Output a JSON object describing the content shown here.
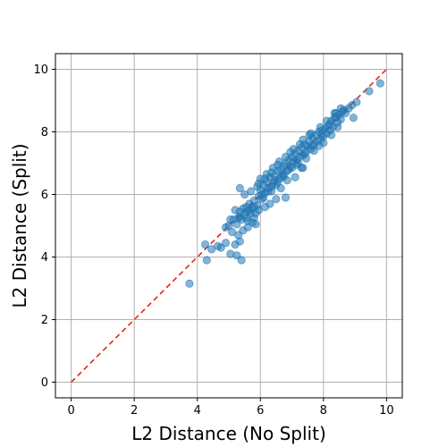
{
  "chart_data": {
    "type": "scatter",
    "title": "",
    "xlabel": "L2 Distance (No Split)",
    "ylabel": "L2 Distance (Split)",
    "xlim": [
      -0.5,
      10.5
    ],
    "ylim": [
      -0.5,
      10.5
    ],
    "xticks": [
      0,
      2,
      4,
      6,
      8,
      10
    ],
    "yticks": [
      0,
      2,
      4,
      6,
      8,
      10
    ],
    "grid": true,
    "legend": "none",
    "colors": {
      "points": "#1f77b4",
      "reference_line": "#e8221a",
      "grid": "#b0b0b0"
    },
    "series": [
      {
        "points": [
          [
            3.75,
            3.15
          ],
          [
            4.3,
            3.9
          ],
          [
            4.25,
            4.4
          ],
          [
            4.45,
            4.25
          ],
          [
            4.65,
            4.35
          ],
          [
            4.75,
            4.3
          ],
          [
            5.05,
            4.1
          ],
          [
            5.25,
            4.05
          ],
          [
            5.4,
            3.9
          ],
          [
            4.9,
            4.45
          ],
          [
            5.2,
            4.4
          ],
          [
            5.35,
            4.5
          ],
          [
            5.0,
            5.0
          ],
          [
            5.1,
            4.8
          ],
          [
            5.15,
            5.2
          ],
          [
            5.25,
            5.05
          ],
          [
            5.3,
            5.25
          ],
          [
            5.35,
            5.45
          ],
          [
            5.4,
            5.2
          ],
          [
            5.45,
            5.55
          ],
          [
            5.5,
            5.35
          ],
          [
            5.55,
            5.6
          ],
          [
            5.6,
            5.15
          ],
          [
            5.65,
            5.7
          ],
          [
            5.7,
            5.4
          ],
          [
            5.75,
            5.55
          ],
          [
            5.8,
            5.25
          ],
          [
            5.85,
            5.05
          ],
          [
            5.35,
            6.2
          ],
          [
            5.8,
            5.8
          ],
          [
            5.9,
            5.65
          ],
          [
            5.95,
            5.95
          ],
          [
            6.0,
            6.15
          ],
          [
            6.05,
            5.85
          ],
          [
            6.1,
            6.3
          ],
          [
            6.15,
            6.05
          ],
          [
            6.2,
            6.4
          ],
          [
            6.25,
            6.2
          ],
          [
            6.3,
            6.55
          ],
          [
            6.35,
            6.1
          ],
          [
            6.4,
            6.35
          ],
          [
            6.45,
            6.6
          ],
          [
            6.5,
            6.3
          ],
          [
            6.55,
            6.75
          ],
          [
            6.6,
            6.5
          ],
          [
            6.65,
            6.8
          ],
          [
            6.7,
            6.55
          ],
          [
            6.75,
            6.9
          ],
          [
            6.8,
            7.0
          ],
          [
            6.85,
            6.75
          ],
          [
            6.9,
            7.1
          ],
          [
            6.95,
            6.9
          ],
          [
            7.0,
            7.2
          ],
          [
            7.05,
            7.05
          ],
          [
            7.1,
            7.3
          ],
          [
            7.15,
            6.95
          ],
          [
            7.2,
            7.4
          ],
          [
            7.25,
            7.2
          ],
          [
            7.3,
            7.5
          ],
          [
            7.35,
            7.25
          ],
          [
            7.4,
            7.6
          ],
          [
            7.45,
            7.35
          ],
          [
            7.5,
            7.55
          ],
          [
            7.55,
            7.7
          ],
          [
            7.6,
            7.45
          ],
          [
            7.65,
            7.8
          ],
          [
            7.7,
            7.6
          ],
          [
            7.75,
            7.9
          ],
          [
            7.8,
            7.7
          ],
          [
            7.85,
            8.0
          ],
          [
            7.9,
            7.75
          ],
          [
            7.95,
            8.05
          ],
          [
            8.0,
            7.85
          ],
          [
            8.05,
            8.1
          ],
          [
            8.1,
            7.95
          ],
          [
            8.15,
            8.2
          ],
          [
            8.2,
            8.05
          ],
          [
            8.25,
            8.35
          ],
          [
            8.3,
            8.15
          ],
          [
            8.35,
            8.45
          ],
          [
            8.4,
            8.6
          ],
          [
            8.45,
            8.3
          ],
          [
            8.5,
            8.55
          ],
          [
            8.55,
            8.4
          ],
          [
            8.6,
            8.65
          ],
          [
            8.7,
            8.6
          ],
          [
            8.8,
            8.75
          ],
          [
            8.9,
            8.85
          ],
          [
            8.95,
            8.45
          ],
          [
            9.05,
            8.95
          ],
          [
            9.45,
            9.3
          ],
          [
            9.8,
            9.55
          ],
          [
            8.45,
            8.15
          ],
          [
            7.85,
            7.55
          ],
          [
            7.3,
            6.85
          ],
          [
            7.1,
            6.55
          ],
          [
            6.85,
            6.45
          ],
          [
            6.65,
            6.2
          ],
          [
            6.5,
            5.85
          ],
          [
            6.3,
            5.7
          ],
          [
            6.15,
            5.6
          ],
          [
            5.95,
            5.5
          ],
          [
            5.75,
            5.1
          ],
          [
            5.6,
            4.95
          ],
          [
            5.45,
            4.85
          ],
          [
            5.3,
            4.7
          ],
          [
            6.6,
            7.05
          ],
          [
            6.8,
            7.2
          ],
          [
            7.05,
            7.45
          ],
          [
            5.5,
            6.0
          ],
          [
            5.7,
            6.1
          ],
          [
            5.9,
            6.25
          ],
          [
            6.0,
            6.5
          ],
          [
            6.2,
            6.65
          ],
          [
            6.4,
            6.85
          ],
          [
            6.95,
            7.35
          ],
          [
            7.35,
            7.75
          ],
          [
            7.55,
            7.9
          ],
          [
            5.2,
            5.5
          ],
          [
            5.05,
            5.2
          ],
          [
            4.9,
            4.95
          ],
          [
            5.6,
            5.45
          ],
          [
            5.8,
            5.6
          ],
          [
            6.05,
            6.0
          ],
          [
            6.25,
            6.1
          ],
          [
            6.45,
            6.45
          ],
          [
            6.7,
            6.65
          ],
          [
            6.9,
            6.8
          ],
          [
            7.15,
            7.1
          ],
          [
            7.4,
            7.3
          ],
          [
            7.65,
            7.55
          ],
          [
            7.95,
            7.9
          ],
          [
            8.2,
            8.25
          ],
          [
            8.4,
            8.45
          ],
          [
            8.65,
            8.7
          ],
          [
            5.35,
            5.3
          ],
          [
            5.55,
            5.25
          ],
          [
            5.65,
            5.5
          ],
          [
            5.85,
            5.4
          ],
          [
            6.1,
            5.9
          ],
          [
            6.35,
            6.25
          ],
          [
            6.55,
            6.4
          ],
          [
            6.75,
            6.6
          ],
          [
            7.0,
            6.85
          ],
          [
            7.2,
            7.0
          ],
          [
            7.45,
            7.15
          ],
          [
            7.7,
            7.4
          ],
          [
            8.0,
            7.65
          ],
          [
            8.25,
            7.9
          ],
          [
            6.8,
            5.9
          ],
          [
            7.35,
            6.85
          ],
          [
            5.95,
            6.35
          ],
          [
            6.15,
            6.5
          ],
          [
            6.35,
            6.7
          ],
          [
            6.55,
            6.95
          ],
          [
            7.25,
            7.6
          ],
          [
            7.6,
            7.95
          ],
          [
            7.9,
            8.15
          ],
          [
            8.1,
            8.35
          ],
          [
            8.35,
            8.6
          ],
          [
            8.55,
            8.75
          ]
        ]
      }
    ],
    "reference_line": {
      "from": [
        0,
        0
      ],
      "to": [
        10,
        10
      ]
    }
  }
}
